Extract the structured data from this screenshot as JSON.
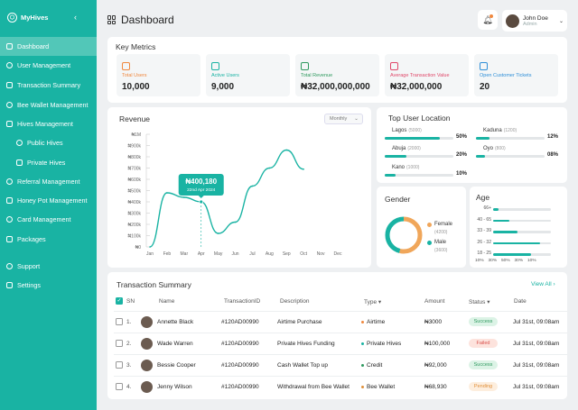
{
  "brand": {
    "name": "MyHives"
  },
  "sidebar": {
    "items": [
      {
        "label": "Dashboard",
        "icon": "grid-icon",
        "active": true
      },
      {
        "label": "User Management",
        "icon": "user-icon"
      },
      {
        "label": "Transaction Summary",
        "icon": "receipt-icon"
      },
      {
        "label": "Bee Wallet Management",
        "icon": "wallet-icon"
      },
      {
        "label": "Hives Management",
        "icon": "hive-icon"
      },
      {
        "label": "Public Hives",
        "icon": "users-icon"
      },
      {
        "label": "Private Hives",
        "icon": "lock-users-icon"
      },
      {
        "label": "Referral Management",
        "icon": "referral-icon"
      },
      {
        "label": "Honey Pot Management",
        "icon": "pot-icon"
      },
      {
        "label": "Card Management",
        "icon": "card-icon"
      },
      {
        "label": "Packages",
        "icon": "package-icon"
      },
      {
        "label": "Support",
        "icon": "support-icon"
      },
      {
        "label": "Settings",
        "icon": "gear-icon"
      }
    ]
  },
  "header": {
    "title": "Dashboard"
  },
  "user": {
    "name": "John Doe",
    "role": "Admin"
  },
  "metrics": {
    "title": "Key Metrics",
    "items": [
      {
        "label": "Total Users",
        "value": "10,000",
        "color": "#f0883e"
      },
      {
        "label": "Active Users",
        "value": "9,000",
        "color": "#19b3a3"
      },
      {
        "label": "Total Revenue",
        "value": "₦32,000,000,000",
        "color": "#2f9a5f"
      },
      {
        "label": "Average Transaction Value",
        "value": "₦32,000,000",
        "color": "#e0486a"
      },
      {
        "label": "Open Customer Tickets",
        "value": "20",
        "color": "#2f8fd8"
      }
    ]
  },
  "revenue": {
    "title": "Revenue",
    "filter": "Monthly",
    "tooltip_value": "₦400,180",
    "tooltip_date": "22nd Apr 2024"
  },
  "chart_data": {
    "type": "line",
    "categories": [
      "Jan",
      "Feb",
      "Mar",
      "Apr",
      "May",
      "Jun",
      "Jul",
      "Aug",
      "Sep",
      "Oct",
      "Nov",
      "Dec"
    ],
    "values": [
      0,
      480,
      440,
      400,
      120,
      220,
      540,
      700,
      860,
      690,
      null,
      null
    ],
    "yticks": [
      "₦0",
      "₦100k",
      "₦200k",
      "₦300k",
      "₦400k",
      "₦500k",
      "₦600k",
      "₦700k",
      "₦800k",
      "₦900k",
      "₦1M"
    ],
    "ylim": [
      0,
      1000
    ],
    "y_unit": "k",
    "color": "#19b3a3"
  },
  "locations": {
    "title": "Top User Location",
    "items": [
      {
        "name": "Lagos",
        "count": "(5000)",
        "pct": "50%",
        "fraction": 0.5
      },
      {
        "name": "Kaduna",
        "count": "(1200)",
        "pct": "12%",
        "fraction": 0.12
      },
      {
        "name": "Abuja",
        "count": "(2000)",
        "pct": "20%",
        "fraction": 0.2
      },
      {
        "name": "Oyo",
        "count": "(800)",
        "pct": "08%",
        "fraction": 0.08
      },
      {
        "name": "Kano",
        "count": "(1000)",
        "pct": "10%",
        "fraction": 0.1
      }
    ]
  },
  "gender": {
    "title": "Gender",
    "female": {
      "label": "Female",
      "count": "(4200)",
      "color": "#f0a65a"
    },
    "male": {
      "label": "Male",
      "count": "(3600)",
      "color": "#19b3a3"
    }
  },
  "age": {
    "title": "Age",
    "groups": [
      {
        "label": "66+",
        "fraction": 0.1
      },
      {
        "label": "40 - 65",
        "fraction": 0.28
      },
      {
        "label": "33 - 39",
        "fraction": 0.42
      },
      {
        "label": "26 - 32",
        "fraction": 0.82
      },
      {
        "label": "18 - 25",
        "fraction": 0.66
      }
    ],
    "ticks": [
      "10%",
      "30%",
      "50%",
      "30%",
      "10%"
    ]
  },
  "transactions": {
    "title": "Transaction Summary",
    "view_all": "View All",
    "headers": {
      "sn": "SN",
      "name": "Name",
      "id": "TransactionID",
      "desc": "Description",
      "type": "Type",
      "amount": "Amount",
      "status": "Status",
      "date": "Date"
    },
    "rows": [
      {
        "sn": "1.",
        "name": "Annette Black",
        "id": "#120AD00990",
        "desc": "Airtime Purchase",
        "type": "Airtime",
        "type_color": "#f0883e",
        "amount": "₦3000",
        "status": "Success",
        "status_class": "success",
        "date": "Jul 31st, 09:08am"
      },
      {
        "sn": "2.",
        "name": "Wade Warren",
        "id": "#120AD00990",
        "desc": "Private Hives Funding",
        "type": "Private Hives",
        "type_color": "#19b3a3",
        "amount": "₦100,000",
        "status": "Failed",
        "status_class": "failed",
        "date": "Jul 31st, 09:08am"
      },
      {
        "sn": "3.",
        "name": "Bessie Cooper",
        "id": "#120AD00990",
        "desc": "Cash Wallet Top up",
        "type": "Credit",
        "type_color": "#2f9a5f",
        "amount": "₦92,000",
        "status": "Success",
        "status_class": "success",
        "date": "Jul 31st, 09:08am"
      },
      {
        "sn": "4.",
        "name": "Jenny Wilson",
        "id": "#120AD00990",
        "desc": "Withdrawal from Bee Wallet",
        "type": "Bee Wallet",
        "type_color": "#e0903a",
        "amount": "₦68,930",
        "status": "Pending",
        "status_class": "pending",
        "date": "Jul 31st, 09:08am"
      }
    ]
  }
}
